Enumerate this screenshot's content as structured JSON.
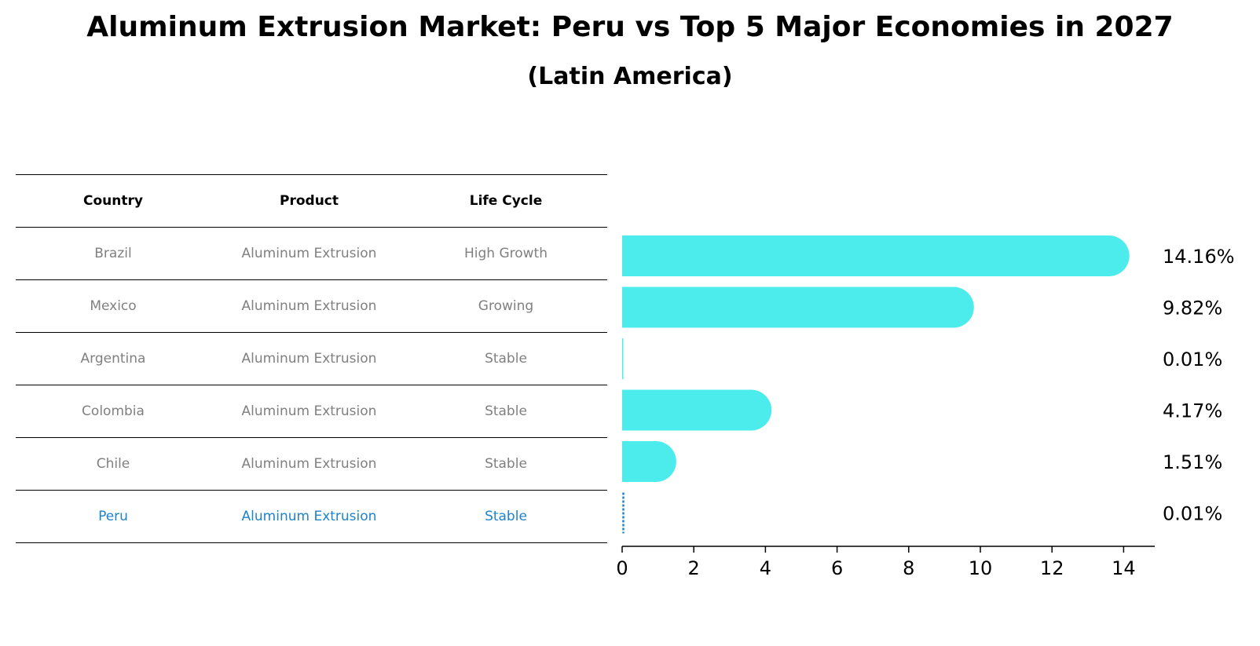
{
  "title": "Aluminum Extrusion Market: Peru vs Top 5 Major Economies in 2027",
  "subtitle": "(Latin America)",
  "table": {
    "headers": [
      "Country",
      "Product",
      "Life Cycle"
    ],
    "rows": [
      {
        "country": "Brazil",
        "product": "Aluminum Extrusion",
        "life_cycle": "High Growth"
      },
      {
        "country": "Mexico",
        "product": "Aluminum Extrusion",
        "life_cycle": "Growing"
      },
      {
        "country": "Argentina",
        "product": "Aluminum Extrusion",
        "life_cycle": "Stable"
      },
      {
        "country": "Colombia",
        "product": "Aluminum Extrusion",
        "life_cycle": "Stable"
      },
      {
        "country": "Chile",
        "product": "Aluminum Extrusion",
        "life_cycle": "Stable"
      },
      {
        "country": "Peru",
        "product": "Aluminum Extrusion",
        "life_cycle": "Stable"
      }
    ]
  },
  "colors": {
    "bar": "#4beceb",
    "highlight": "#1f83c8",
    "muted_text": "#808080"
  },
  "chart_data": {
    "type": "bar",
    "orientation": "horizontal",
    "categories": [
      "Brazil",
      "Mexico",
      "Argentina",
      "Colombia",
      "Chile",
      "Peru"
    ],
    "values": [
      14.16,
      9.82,
      0.01,
      4.17,
      1.51,
      0.01
    ],
    "value_labels": [
      "14.16%",
      "9.82%",
      "0.01%",
      "4.17%",
      "1.51%",
      "0.01%"
    ],
    "xlim": [
      0,
      14.9
    ],
    "xticks": [
      0,
      2,
      4,
      6,
      8,
      10,
      12,
      14
    ],
    "xtick_labels": [
      "0",
      "2",
      "4",
      "6",
      "8",
      "10",
      "12",
      "14"
    ],
    "highlight": "Peru",
    "grid": false
  }
}
